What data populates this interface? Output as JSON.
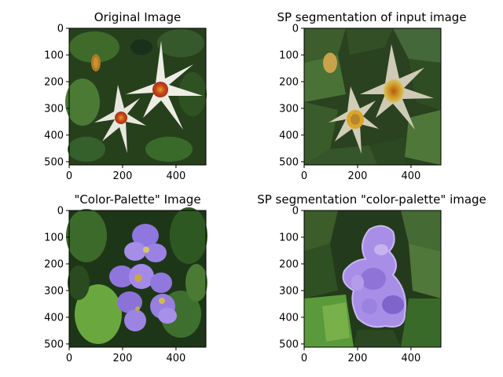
{
  "panels": [
    {
      "title": "Original Image",
      "xticks": [
        "0",
        "200",
        "400"
      ],
      "yticks": [
        "0",
        "100",
        "200",
        "300",
        "400",
        "500"
      ],
      "content": "photo of two white star-shaped flowers with red-orange centers on dark green foliage"
    },
    {
      "title": "SP segmentation of input image",
      "xticks": [
        "0",
        "200",
        "400"
      ],
      "yticks": [
        "0",
        "100",
        "200",
        "300",
        "400",
        "500"
      ],
      "content": "superpixel segmentation of the white flowers image"
    },
    {
      "title": "\"Color-Palette\" Image",
      "xticks": [
        "0",
        "200",
        "400"
      ],
      "yticks": [
        "0",
        "100",
        "200",
        "300",
        "400",
        "500"
      ],
      "content": "photo of purple flowers with yellow throats among green leaves"
    },
    {
      "title": "SP segmentation \"color-palette\" image",
      "xticks": [
        "0",
        "200",
        "400"
      ],
      "yticks": [
        "0",
        "100",
        "200",
        "300",
        "400",
        "500"
      ],
      "content": "superpixel segmentation of the purple flowers image"
    }
  ],
  "colors": {
    "foliage_dark": "#1f3518",
    "foliage_mid": "#3d5f2a",
    "white_petal": "#ecebe2",
    "flower_center": "#c8471d",
    "purple_petal": "#9a7fe0",
    "leaf_bright": "#5a9a3a"
  }
}
